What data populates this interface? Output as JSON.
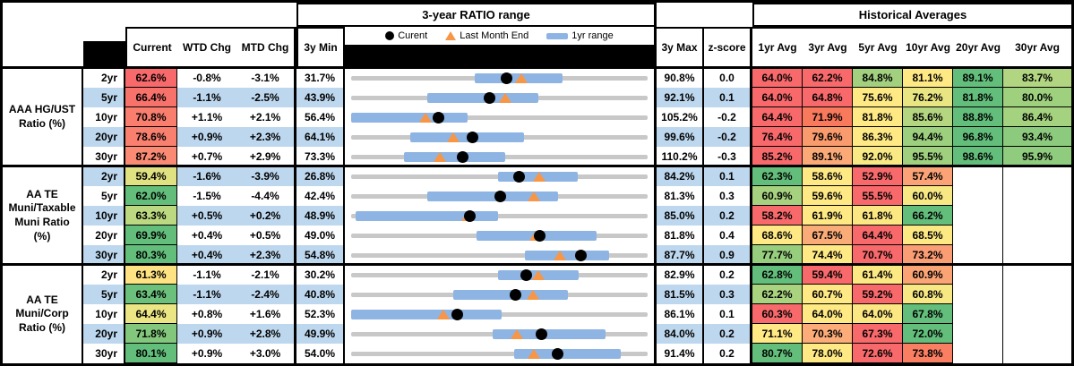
{
  "header": {
    "range_title": "3-year RATIO range",
    "historical_title": "Historical Averages",
    "col_current": "Current",
    "col_wtd": "WTD Chg",
    "col_mtd": "MTD Chg",
    "col_3y_min": "3y Min",
    "col_3y_max": "3y Max",
    "col_zscore": "z-score",
    "avg_cols": [
      "1yr Avg",
      "3yr Avg",
      "5yr Avg",
      "10yr Avg",
      "20yr Avg",
      "30yr Avg"
    ],
    "legend": {
      "current_label": "Curent",
      "last_month_label": "Last Month End",
      "range_label": "1yr range"
    }
  },
  "colors": {
    "stripe_blue": "#BDD7EE",
    "range_bar_blue": "#8EB4E3",
    "track_gray": "#C8C8C8",
    "marker_orange": "#F79646",
    "heat_red": "#F8696B",
    "heat_yellow": "#FFE984",
    "heat_green": "#63BE7B",
    "black": "#000000",
    "white": "#FFFFFF"
  },
  "groups": [
    {
      "label_lines": [
        "AAA HG/UST",
        "Ratio (%)"
      ],
      "rows": [
        {
          "tenor": "2yr",
          "current": "62.6%",
          "current_bg": "#F8696B",
          "wtd": "-0.8%",
          "mtd": "-3.1%",
          "min": "31.7%",
          "max": "90.8%",
          "z": "0.0",
          "avgs": [
            {
              "v": "64.0%",
              "bg": "#F8696B"
            },
            {
              "v": "62.2%",
              "bg": "#F8696B"
            },
            {
              "v": "84.8%",
              "bg": "#A2D07F"
            },
            {
              "v": "81.1%",
              "bg": "#FFE984"
            },
            {
              "v": "89.1%",
              "bg": "#63BE7B"
            },
            {
              "v": "83.7%",
              "bg": "#B1D580"
            }
          ]
        },
        {
          "tenor": "5yr",
          "current": "66.4%",
          "current_bg": "#F8726C",
          "wtd": "-1.1%",
          "mtd": "-2.5%",
          "min": "43.9%",
          "max": "92.1%",
          "z": "0.1",
          "avgs": [
            {
              "v": "64.0%",
              "bg": "#F8696B"
            },
            {
              "v": "64.8%",
              "bg": "#F8696B"
            },
            {
              "v": "75.6%",
              "bg": "#FFE984"
            },
            {
              "v": "76.2%",
              "bg": "#E9E583"
            },
            {
              "v": "81.8%",
              "bg": "#63BE7B"
            },
            {
              "v": "80.0%",
              "bg": "#9ED07E"
            }
          ]
        },
        {
          "tenor": "10yr",
          "current": "70.8%",
          "current_bg": "#F97E6E",
          "wtd": "+1.1%",
          "mtd": "+2.1%",
          "min": "56.4%",
          "max": "105.2%",
          "z": "-0.2",
          "avgs": [
            {
              "v": "64.4%",
              "bg": "#F8696B"
            },
            {
              "v": "71.9%",
              "bg": "#F8795B"
            },
            {
              "v": "81.8%",
              "bg": "#FFE984"
            },
            {
              "v": "85.6%",
              "bg": "#B5D680"
            },
            {
              "v": "88.8%",
              "bg": "#63BE7B"
            },
            {
              "v": "86.4%",
              "bg": "#A5D27F"
            }
          ]
        },
        {
          "tenor": "20yr",
          "current": "78.6%",
          "current_bg": "#F97F6F",
          "wtd": "+0.9%",
          "mtd": "+2.3%",
          "min": "64.1%",
          "max": "99.6%",
          "z": "-0.2",
          "avgs": [
            {
              "v": "76.4%",
              "bg": "#F8696B"
            },
            {
              "v": "79.6%",
              "bg": "#F99B6C"
            },
            {
              "v": "86.3%",
              "bg": "#FFE984"
            },
            {
              "v": "94.4%",
              "bg": "#9CD07E"
            },
            {
              "v": "96.8%",
              "bg": "#63BE7B"
            },
            {
              "v": "93.4%",
              "bg": "#8CCA7D"
            }
          ]
        },
        {
          "tenor": "30yr",
          "current": "87.2%",
          "current_bg": "#FA8A73",
          "wtd": "+0.7%",
          "mtd": "+2.9%",
          "min": "73.3%",
          "max": "110.2%",
          "z": "-0.3",
          "avgs": [
            {
              "v": "85.2%",
              "bg": "#F8696B"
            },
            {
              "v": "89.1%",
              "bg": "#FBAA77"
            },
            {
              "v": "92.0%",
              "bg": "#F9E984"
            },
            {
              "v": "95.5%",
              "bg": "#9ED07E"
            },
            {
              "v": "98.6%",
              "bg": "#63BE7B"
            },
            {
              "v": "95.9%",
              "bg": "#90CC7D"
            }
          ]
        }
      ]
    },
    {
      "label_lines": [
        "AA TE",
        "Muni/Taxable",
        "Muni Ratio",
        "(%)"
      ],
      "rows": [
        {
          "tenor": "2yr",
          "current": "59.4%",
          "current_bg": "#E0E282",
          "wtd": "-1.6%",
          "mtd": "-3.9%",
          "min": "26.8%",
          "max": "84.2%",
          "z": "0.1",
          "avgs": [
            {
              "v": "62.3%",
              "bg": "#63BE7B"
            },
            {
              "v": "58.6%",
              "bg": "#FFE984"
            },
            {
              "v": "52.9%",
              "bg": "#F8696B"
            },
            {
              "v": "57.4%",
              "bg": "#FBA376"
            },
            {
              "v": "",
              "bg": "#FFFFFF"
            },
            {
              "v": "",
              "bg": "#FFFFFF"
            }
          ]
        },
        {
          "tenor": "5yr",
          "current": "62.0%",
          "current_bg": "#63BE7B",
          "wtd": "-1.5%",
          "mtd": "-4.4%",
          "min": "42.4%",
          "max": "81.3%",
          "z": "0.3",
          "avgs": [
            {
              "v": "60.9%",
              "bg": "#A6D27F"
            },
            {
              "v": "59.6%",
              "bg": "#FFE984"
            },
            {
              "v": "55.5%",
              "bg": "#F8696B"
            },
            {
              "v": "60.0%",
              "bg": "#F7E884"
            },
            {
              "v": "",
              "bg": "#FFFFFF"
            },
            {
              "v": "",
              "bg": "#FFFFFF"
            }
          ]
        },
        {
          "tenor": "10yr",
          "current": "63.3%",
          "current_bg": "#BCD880",
          "wtd": "+0.5%",
          "mtd": "+0.2%",
          "min": "48.9%",
          "max": "85.0%",
          "z": "0.2",
          "avgs": [
            {
              "v": "58.2%",
              "bg": "#F8696B"
            },
            {
              "v": "61.9%",
              "bg": "#FFE984"
            },
            {
              "v": "61.8%",
              "bg": "#FCE883"
            },
            {
              "v": "66.2%",
              "bg": "#63BE7B"
            },
            {
              "v": "",
              "bg": "#FFFFFF"
            },
            {
              "v": "",
              "bg": "#FFFFFF"
            }
          ]
        },
        {
          "tenor": "20yr",
          "current": "69.9%",
          "current_bg": "#63BE7B",
          "wtd": "+0.4%",
          "mtd": "+0.5%",
          "min": "49.0%",
          "max": "81.8%",
          "z": "0.4",
          "avgs": [
            {
              "v": "68.6%",
              "bg": "#FFE984"
            },
            {
              "v": "67.5%",
              "bg": "#FAAC78"
            },
            {
              "v": "64.4%",
              "bg": "#F8696B"
            },
            {
              "v": "68.5%",
              "bg": "#FDE983"
            },
            {
              "v": "",
              "bg": "#FFFFFF"
            },
            {
              "v": "",
              "bg": "#FFFFFF"
            }
          ]
        },
        {
          "tenor": "30yr",
          "current": "80.3%",
          "current_bg": "#63BE7B",
          "wtd": "+0.4%",
          "mtd": "+2.3%",
          "min": "54.8%",
          "max": "87.7%",
          "z": "0.9",
          "avgs": [
            {
              "v": "77.7%",
              "bg": "#97CE7E"
            },
            {
              "v": "74.4%",
              "bg": "#FFE984"
            },
            {
              "v": "70.7%",
              "bg": "#F8696B"
            },
            {
              "v": "73.2%",
              "bg": "#FA9C74"
            },
            {
              "v": "",
              "bg": "#FFFFFF"
            },
            {
              "v": "",
              "bg": "#FFFFFF"
            }
          ]
        }
      ]
    },
    {
      "label_lines": [
        "AA TE",
        "Muni/Corp",
        "Ratio (%)"
      ],
      "rows": [
        {
          "tenor": "2yr",
          "current": "61.3%",
          "current_bg": "#FFE383",
          "wtd": "-1.1%",
          "mtd": "-2.1%",
          "min": "30.2%",
          "max": "82.9%",
          "z": "0.2",
          "avgs": [
            {
              "v": "62.8%",
              "bg": "#63BE7B"
            },
            {
              "v": "59.4%",
              "bg": "#F8696B"
            },
            {
              "v": "61.4%",
              "bg": "#FDE983"
            },
            {
              "v": "60.9%",
              "bg": "#FAA476"
            },
            {
              "v": "",
              "bg": "#FFFFFF"
            },
            {
              "v": "",
              "bg": "#FFFFFF"
            }
          ]
        },
        {
          "tenor": "5yr",
          "current": "63.4%",
          "current_bg": "#6BC17B",
          "wtd": "-1.1%",
          "mtd": "-2.4%",
          "min": "40.8%",
          "max": "81.5%",
          "z": "0.3",
          "avgs": [
            {
              "v": "62.2%",
              "bg": "#A9D37F"
            },
            {
              "v": "60.7%",
              "bg": "#FFE984"
            },
            {
              "v": "59.2%",
              "bg": "#F8696B"
            },
            {
              "v": "60.8%",
              "bg": "#F7E883"
            },
            {
              "v": "",
              "bg": "#FFFFFF"
            },
            {
              "v": "",
              "bg": "#FFFFFF"
            }
          ]
        },
        {
          "tenor": "10yr",
          "current": "64.4%",
          "current_bg": "#EBE583",
          "wtd": "+0.8%",
          "mtd": "+1.6%",
          "min": "52.3%",
          "max": "86.1%",
          "z": "0.1",
          "avgs": [
            {
              "v": "60.3%",
              "bg": "#F8696B"
            },
            {
              "v": "64.0%",
              "bg": "#FFE984"
            },
            {
              "v": "64.0%",
              "bg": "#FCE883"
            },
            {
              "v": "67.8%",
              "bg": "#63BE7B"
            },
            {
              "v": "",
              "bg": "#FFFFFF"
            },
            {
              "v": "",
              "bg": "#FFFFFF"
            }
          ]
        },
        {
          "tenor": "20yr",
          "current": "71.8%",
          "current_bg": "#82C77C",
          "wtd": "+0.9%",
          "mtd": "+2.8%",
          "min": "49.9%",
          "max": "84.0%",
          "z": "0.2",
          "avgs": [
            {
              "v": "71.1%",
              "bg": "#FFE984"
            },
            {
              "v": "70.3%",
              "bg": "#FBAC78"
            },
            {
              "v": "67.3%",
              "bg": "#F8696B"
            },
            {
              "v": "72.0%",
              "bg": "#63BE7B"
            },
            {
              "v": "",
              "bg": "#FFFFFF"
            },
            {
              "v": "",
              "bg": "#FFFFFF"
            }
          ]
        },
        {
          "tenor": "30yr",
          "current": "80.1%",
          "current_bg": "#63BE7B",
          "wtd": "+0.9%",
          "mtd": "+3.0%",
          "min": "54.0%",
          "max": "91.4%",
          "z": "0.2",
          "avgs": [
            {
              "v": "80.7%",
              "bg": "#63BE7B"
            },
            {
              "v": "78.0%",
              "bg": "#FFE984"
            },
            {
              "v": "72.6%",
              "bg": "#F8696B"
            },
            {
              "v": "73.8%",
              "bg": "#F97E62"
            },
            {
              "v": "",
              "bg": "#FFFFFF"
            },
            {
              "v": "",
              "bg": "#FFFFFF"
            }
          ]
        }
      ]
    }
  ],
  "chart_data": {
    "type": "range",
    "title": "3-year RATIO range",
    "legend": [
      "Curent",
      "Last Month End",
      "1yr range"
    ],
    "x_mapping": "each row track spans its own 3y Min to 3y Max",
    "rows": [
      {
        "group": "AAA HG/UST",
        "tenor": "2yr",
        "min_3y": 31.7,
        "max_3y": 90.8,
        "current": 62.6,
        "last_month_end": 65.7,
        "yr1_range": [
          56.3,
          73.8
        ]
      },
      {
        "group": "AAA HG/UST",
        "tenor": "5yr",
        "min_3y": 43.9,
        "max_3y": 92.1,
        "current": 66.4,
        "last_month_end": 68.9,
        "yr1_range": [
          56.3,
          74.4
        ]
      },
      {
        "group": "AAA HG/UST",
        "tenor": "10yr",
        "min_3y": 56.4,
        "max_3y": 105.2,
        "current": 70.8,
        "last_month_end": 68.7,
        "yr1_range": [
          56.4,
          75.5
        ]
      },
      {
        "group": "AAA HG/UST",
        "tenor": "20yr",
        "min_3y": 64.1,
        "max_3y": 99.6,
        "current": 78.6,
        "last_month_end": 76.3,
        "yr1_range": [
          71.2,
          84.8
        ]
      },
      {
        "group": "AAA HG/UST",
        "tenor": "30yr",
        "min_3y": 73.3,
        "max_3y": 110.2,
        "current": 87.2,
        "last_month_end": 84.3,
        "yr1_range": [
          79.9,
          92.5
        ]
      },
      {
        "group": "AA TE Muni/Taxable",
        "tenor": "2yr",
        "min_3y": 26.8,
        "max_3y": 84.2,
        "current": 59.4,
        "last_month_end": 63.3,
        "yr1_range": [
          55.2,
          70.6
        ]
      },
      {
        "group": "AA TE Muni/Taxable",
        "tenor": "5yr",
        "min_3y": 42.4,
        "max_3y": 81.3,
        "current": 62.0,
        "last_month_end": 66.4,
        "yr1_range": [
          52.4,
          69.6
        ]
      },
      {
        "group": "AA TE Muni/Taxable",
        "tenor": "10yr",
        "min_3y": 48.9,
        "max_3y": 85.0,
        "current": 63.3,
        "last_month_end": 63.1,
        "yr1_range": [
          49.4,
          66.8
        ]
      },
      {
        "group": "AA TE Muni/Taxable",
        "tenor": "20yr",
        "min_3y": 49.0,
        "max_3y": 81.8,
        "current": 69.9,
        "last_month_end": 69.4,
        "yr1_range": [
          62.9,
          76.2
        ]
      },
      {
        "group": "AA TE Muni/Taxable",
        "tenor": "30yr",
        "min_3y": 54.8,
        "max_3y": 87.7,
        "current": 80.3,
        "last_month_end": 78.0,
        "yr1_range": [
          74.1,
          83.4
        ]
      },
      {
        "group": "AA TE Muni/Corp",
        "tenor": "2yr",
        "min_3y": 30.2,
        "max_3y": 82.9,
        "current": 61.3,
        "last_month_end": 63.4,
        "yr1_range": [
          56.3,
          70.7
        ]
      },
      {
        "group": "AA TE Muni/Corp",
        "tenor": "5yr",
        "min_3y": 40.8,
        "max_3y": 81.5,
        "current": 63.4,
        "last_month_end": 65.8,
        "yr1_range": [
          54.8,
          70.5
        ]
      },
      {
        "group": "AA TE Muni/Corp",
        "tenor": "10yr",
        "min_3y": 52.3,
        "max_3y": 86.1,
        "current": 64.4,
        "last_month_end": 62.8,
        "yr1_range": [
          52.3,
          69.5
        ]
      },
      {
        "group": "AA TE Muni/Corp",
        "tenor": "20yr",
        "min_3y": 49.9,
        "max_3y": 84.0,
        "current": 71.8,
        "last_month_end": 69.0,
        "yr1_range": [
          66.2,
          79.2
        ]
      },
      {
        "group": "AA TE Muni/Corp",
        "tenor": "30yr",
        "min_3y": 54.0,
        "max_3y": 91.4,
        "current": 80.1,
        "last_month_end": 77.1,
        "yr1_range": [
          74.6,
          88.0
        ]
      }
    ]
  }
}
